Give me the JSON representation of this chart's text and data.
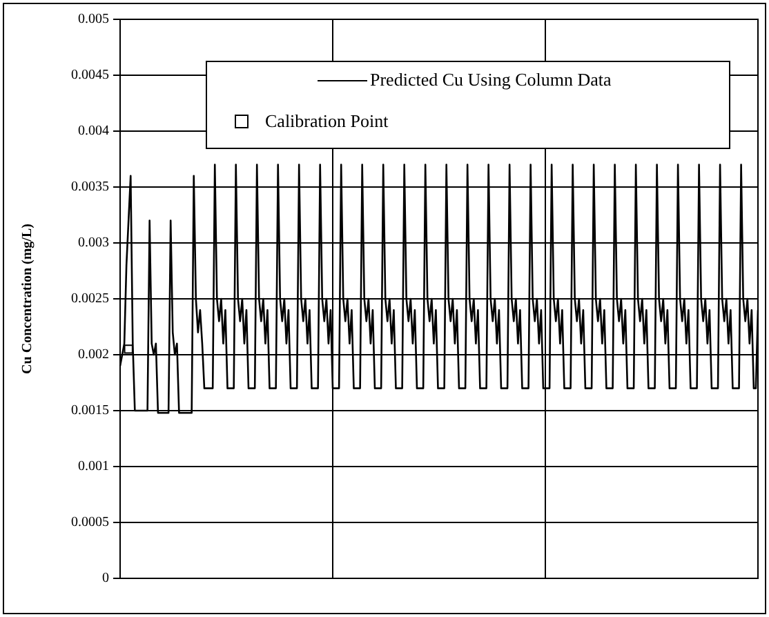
{
  "chart_data": {
    "type": "line",
    "ylabel": "Cu Concentration (mg/L)",
    "ylim": [
      0,
      0.005
    ],
    "yticks": [
      0,
      0.0005,
      0.001,
      0.0015,
      0.002,
      0.0025,
      0.003,
      0.0035,
      0.004,
      0.0045,
      0.005
    ],
    "grid": true,
    "legend": "top right",
    "categories": [
      null,
      null,
      null,
      null,
      null,
      null,
      null,
      null,
      null,
      null,
      null,
      null,
      null,
      null,
      null,
      null,
      null,
      null,
      null,
      null,
      null,
      null,
      null,
      null,
      null,
      null,
      null,
      null,
      null,
      null,
      null,
      null,
      null,
      null,
      null,
      null,
      null,
      null,
      null,
      null,
      null,
      null,
      null,
      null,
      null,
      null,
      null,
      null,
      null,
      null,
      null,
      null,
      null,
      null,
      null,
      null,
      null,
      null,
      null,
      null,
      null,
      null,
      null,
      null,
      null,
      null,
      null,
      null,
      null,
      null,
      null,
      null,
      null,
      null,
      null,
      null,
      null,
      null,
      null,
      null,
      null,
      null,
      null,
      null,
      null,
      null,
      null,
      null,
      null,
      null,
      null,
      null,
      null,
      null,
      null,
      null,
      null,
      null,
      null,
      null,
      null,
      null,
      null,
      null,
      null,
      null,
      null,
      null,
      null,
      null,
      null,
      null,
      null,
      null,
      null,
      null,
      null,
      null,
      null,
      null,
      null,
      null,
      null,
      null,
      null,
      null,
      null,
      null,
      null,
      null,
      null,
      null,
      null,
      null,
      null,
      null,
      null,
      null,
      null,
      null,
      null,
      null,
      null,
      null,
      null,
      null,
      null,
      null,
      null,
      null,
      null,
      null,
      null,
      null,
      null,
      null,
      null,
      null,
      null,
      null,
      null,
      null,
      null,
      null,
      null,
      null,
      null,
      null,
      null,
      null,
      null,
      null,
      null,
      null,
      null,
      null,
      null,
      null,
      null,
      null,
      null,
      null,
      null,
      null,
      null,
      null,
      null,
      null,
      null,
      null,
      null,
      null,
      null,
      null,
      null,
      null,
      null,
      null,
      null,
      null,
      null,
      null,
      null,
      null,
      null,
      null,
      null,
      null,
      null,
      null,
      null,
      null,
      null,
      null,
      null,
      null,
      null,
      null,
      null,
      null,
      null,
      null,
      null,
      null,
      null,
      null,
      null,
      null,
      null,
      null,
      null,
      null,
      null,
      null,
      null,
      null,
      null,
      null,
      null,
      null,
      null,
      null,
      null,
      null,
      null,
      null,
      null,
      null,
      null,
      null,
      null,
      null,
      null,
      null,
      null,
      null,
      null,
      null,
      null,
      null,
      null,
      null,
      null,
      null,
      null,
      null,
      null,
      null,
      null,
      null,
      null,
      null,
      null,
      null,
      null,
      null,
      null,
      null,
      null,
      null,
      null,
      null,
      null,
      null,
      null,
      null,
      null,
      null,
      null,
      null,
      null,
      null,
      null,
      null,
      null,
      null,
      null,
      null,
      null,
      null,
      null,
      null,
      null,
      null
    ],
    "series": [
      {
        "name": "Predicted Cu Using Column Data",
        "marker": "none",
        "color": "#000000",
        "values": [
          0.0019,
          0.002,
          0.0021,
          0.0028,
          0.0032,
          0.0036,
          0.0021,
          0.0015,
          0.0015,
          0.0015,
          0.0015,
          0.0015,
          0.0015,
          0.0015,
          0.0032,
          0.0021,
          0.002,
          0.0021,
          0.00148,
          0.00148,
          0.00148,
          0.00148,
          0.00148,
          0.00148,
          0.0032,
          0.0022,
          0.002,
          0.0021,
          0.00148,
          0.00148,
          0.00148,
          0.00148,
          0.00148,
          0.00148,
          0.00148,
          0.0036,
          0.0025,
          0.0022,
          0.0024,
          0.0021,
          0.0017,
          0.0017,
          0.0017,
          0.0017,
          0.0017,
          0.0037,
          0.0025,
          0.0023,
          0.0025,
          0.0021,
          0.0024,
          0.0017,
          0.0017,
          0.0017,
          0.0017,
          0.0037,
          0.0025,
          0.0023,
          0.0025,
          0.0021,
          0.0024,
          0.0017,
          0.0017,
          0.0017,
          0.0017,
          0.0037,
          0.0025,
          0.0023,
          0.0025,
          0.0021,
          0.0024,
          0.0017,
          0.0017,
          0.0017,
          0.0017,
          0.0037,
          0.0025,
          0.0023,
          0.0025,
          0.0021,
          0.0024,
          0.0017,
          0.0017,
          0.0017,
          0.0017,
          0.0037,
          0.0025,
          0.0023,
          0.0025,
          0.0021,
          0.0024,
          0.0017,
          0.0017,
          0.0017,
          0.0017,
          0.0037,
          0.0025,
          0.0023,
          0.0025,
          0.0021,
          0.0024,
          0.0017,
          0.0017,
          0.0017,
          0.0017,
          0.0037,
          0.0025,
          0.0023,
          0.0025,
          0.0021,
          0.0024,
          0.0017,
          0.0017,
          0.0017,
          0.0017,
          0.0037,
          0.0025,
          0.0023,
          0.0025,
          0.0021,
          0.0024,
          0.0017,
          0.0017,
          0.0017,
          0.0017,
          0.0037,
          0.0025,
          0.0023,
          0.0025,
          0.0021,
          0.0024,
          0.0017,
          0.0017,
          0.0017,
          0.0017,
          0.0037,
          0.0025,
          0.0023,
          0.0025,
          0.0021,
          0.0024,
          0.0017,
          0.0017,
          0.0017,
          0.0017,
          0.0037,
          0.0025,
          0.0023,
          0.0025,
          0.0021,
          0.0024,
          0.0017,
          0.0017,
          0.0017,
          0.0017,
          0.0037,
          0.0025,
          0.0023,
          0.0025,
          0.0021,
          0.0024,
          0.0017,
          0.0017,
          0.0017,
          0.0017,
          0.0037,
          0.0025,
          0.0023,
          0.0025,
          0.0021,
          0.0024,
          0.0017,
          0.0017,
          0.0017,
          0.0017,
          0.0037,
          0.0025,
          0.0023,
          0.0025,
          0.0021,
          0.0024,
          0.0017,
          0.0017,
          0.0017,
          0.0017,
          0.0037,
          0.0025,
          0.0023,
          0.0025,
          0.0021,
          0.0024,
          0.0017,
          0.0017,
          0.0017,
          0.0017,
          0.0037,
          0.0025,
          0.0023,
          0.0025,
          0.0021,
          0.0024,
          0.0017,
          0.0017,
          0.0017,
          0.0017,
          0.0037,
          0.0025,
          0.0023,
          0.0025,
          0.0021,
          0.0024,
          0.0017,
          0.0017,
          0.0017,
          0.0017,
          0.0037,
          0.0025,
          0.0023,
          0.0025,
          0.0021,
          0.0024,
          0.0017,
          0.0017,
          0.0017,
          0.0017,
          0.0037,
          0.0025,
          0.0023,
          0.0025,
          0.0021,
          0.0024,
          0.0017,
          0.0017,
          0.0017,
          0.0017,
          0.0037,
          0.0025,
          0.0023,
          0.0025,
          0.0021,
          0.0024,
          0.0017,
          0.0017,
          0.0017,
          0.0017,
          0.0037,
          0.0025,
          0.0023,
          0.0025,
          0.0021,
          0.0024,
          0.0017,
          0.0017,
          0.0017,
          0.0017,
          0.0037,
          0.0025,
          0.0023,
          0.0025,
          0.0021,
          0.0024,
          0.0017,
          0.0017,
          0.0017,
          0.0017,
          0.0037,
          0.0025,
          0.0023,
          0.0025,
          0.0021,
          0.0024,
          0.0017,
          0.0017,
          0.0017,
          0.0017,
          0.0037,
          0.0025,
          0.0023,
          0.0025,
          0.0021,
          0.0024,
          0.0017,
          0.0017,
          0.0017,
          0.0017,
          0.0037,
          0.0025,
          0.0023,
          0.0025,
          0.0021,
          0.0024,
          0.0017,
          0.0017,
          0.0017,
          0.0017,
          0.0037,
          0.0025,
          0.0023,
          0.0025,
          0.0021,
          0.0024,
          0.0017,
          0.0017,
          0.0024
        ]
      },
      {
        "name": "Calibration Point",
        "type": "scatter",
        "marker": "square",
        "color": "#000000",
        "values": [
          null,
          null,
          null,
          null,
          0.00205,
          null,
          null,
          null,
          null,
          null,
          null,
          null,
          null,
          null,
          null,
          null,
          null,
          null,
          null,
          null,
          null,
          null,
          null,
          null,
          null,
          null,
          null,
          null,
          null,
          null,
          null,
          null,
          null,
          null,
          null,
          null,
          null,
          null,
          null,
          null,
          null,
          null,
          null,
          null,
          null,
          null,
          null,
          null,
          null,
          null,
          null,
          null,
          null,
          null,
          null,
          null,
          null,
          null,
          null,
          null,
          null,
          null,
          null,
          null,
          null,
          null,
          null,
          null,
          null,
          null,
          null,
          null,
          null,
          null,
          null,
          null,
          null,
          null,
          null,
          null,
          null,
          null,
          null,
          null,
          null,
          null,
          null,
          null,
          null,
          null,
          null,
          null,
          null,
          null,
          null,
          null,
          null,
          null,
          null,
          null,
          null,
          null,
          null,
          null,
          null,
          null,
          null,
          null,
          null,
          null,
          null,
          null,
          null,
          null,
          null,
          null,
          null,
          null,
          null,
          null,
          null,
          null,
          null,
          null,
          null,
          null,
          null,
          null,
          null,
          null,
          null,
          null,
          null,
          null,
          null,
          null,
          null,
          null,
          null,
          null,
          null,
          null,
          null,
          null,
          null,
          null,
          null,
          null,
          null,
          null,
          null,
          null,
          null,
          null,
          null,
          null,
          null,
          null,
          null,
          null,
          null,
          null,
          null,
          null,
          null,
          null,
          null,
          null,
          null,
          null,
          null,
          null,
          null,
          null,
          null,
          null,
          null,
          null,
          null,
          null,
          null,
          null,
          null,
          null,
          null,
          null,
          null,
          null,
          null,
          null,
          null,
          null,
          null,
          null,
          null,
          null,
          null,
          null,
          null,
          null,
          null,
          null,
          null,
          null,
          null,
          null,
          null,
          null,
          null,
          null,
          null,
          null,
          null,
          null,
          null,
          null,
          null,
          null,
          null,
          null,
          null,
          null,
          null,
          null,
          null,
          null,
          null,
          null,
          null,
          null,
          null,
          null,
          null,
          null,
          null,
          null,
          null,
          null,
          null,
          null,
          null,
          null,
          null,
          null,
          null,
          null,
          null,
          null,
          null,
          null,
          null,
          null,
          null,
          null,
          null,
          null,
          null,
          null,
          null,
          null,
          null,
          null,
          null,
          null,
          null,
          null,
          null,
          null,
          null,
          null,
          null,
          null,
          null,
          null,
          null,
          null,
          null,
          null,
          null,
          null,
          null,
          null,
          null,
          null,
          null,
          null,
          null,
          null,
          null,
          null,
          null,
          null,
          null,
          null,
          null,
          null,
          null,
          null,
          null,
          null,
          null,
          null,
          null,
          null
        ]
      }
    ]
  }
}
